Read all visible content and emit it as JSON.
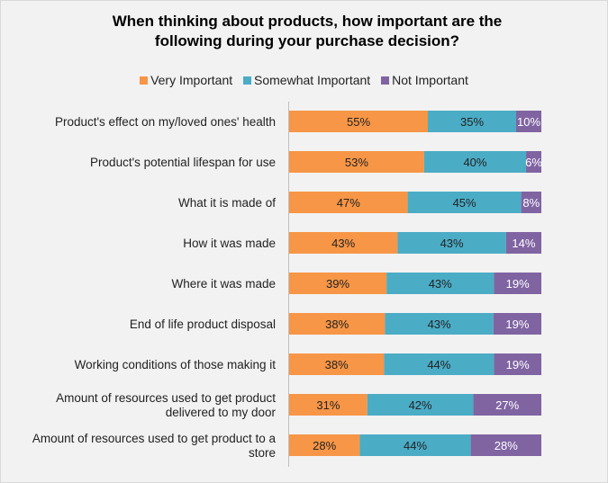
{
  "chart_data": {
    "type": "bar",
    "orientation": "horizontal",
    "stacked": "100%",
    "title": "When thinking about products, how important are the following during your purchase decision?",
    "title_lines": [
      "When thinking about products, how important are the",
      "following during your purchase decision?"
    ],
    "legend_position": "top",
    "grid": false,
    "categories": [
      [
        "Product's effect on my/loved ones' health"
      ],
      [
        "Product's potential lifespan for use"
      ],
      [
        "What it is made of"
      ],
      [
        "How it was made"
      ],
      [
        "Where it was made"
      ],
      [
        "End of life product disposal"
      ],
      [
        "Working conditions of those making it"
      ],
      [
        "Amount of resources used to get product",
        "delivered to my door"
      ],
      [
        "Amount of resources used to get product to a",
        "store"
      ]
    ],
    "series": [
      {
        "name": "Very Important",
        "color": "#f79646",
        "label_color": "#222222",
        "values": [
          55,
          53,
          47,
          43,
          39,
          38,
          38,
          31,
          28
        ]
      },
      {
        "name": "Somewhat Important",
        "color": "#4bacc6",
        "label_color": "#222222",
        "values": [
          35,
          40,
          45,
          43,
          43,
          43,
          44,
          42,
          44
        ]
      },
      {
        "name": "Not Important",
        "color": "#8064a2",
        "label_color": "#ffffff",
        "values": [
          10,
          6,
          8,
          14,
          19,
          19,
          19,
          27,
          28
        ]
      }
    ]
  }
}
